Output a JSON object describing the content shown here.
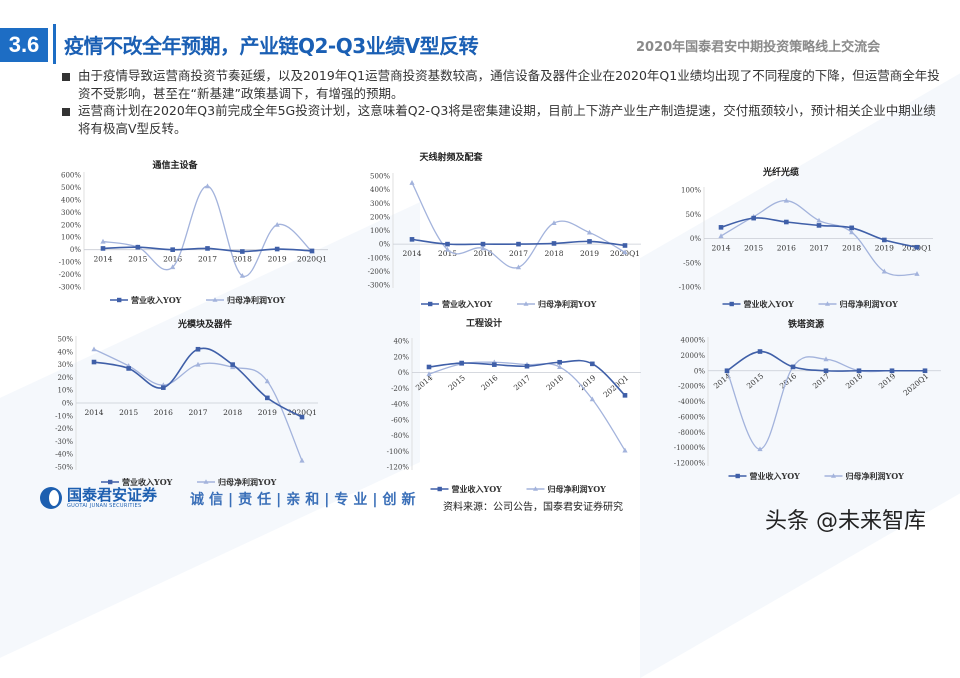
{
  "header": {
    "section_number": "3.6",
    "title": "疫情不改全年预期，产业链Q2-Q3业绩V型反转",
    "event": "2020年国泰君安中期投资策略线上交流会"
  },
  "bullets": [
    "由于疫情导致运营商投资节奏延缓，以及2019年Q1运营商投资基数较高，通信设备及器件企业在2020年Q1业绩均出现了不同程度的下降，但运营商全年投资不受影响，甚至在“新基建”政策基调下，有增强的预期。",
    "运营商计划在2020年Q3前完成全年5G投资计划，这意味着Q2-Q3将是密集建设期，目前上下游产业生产制造提速，交付瓶颈较小，预计相关企业中期业绩将有极高V型反转。"
  ],
  "colors": {
    "accent": "#1d6dc4",
    "revenue_series": "#3f5fa8",
    "profit_series": "#a3b3dc"
  },
  "chart_data": [
    {
      "type": "line",
      "title": "通信主设备",
      "categories": [
        "2014",
        "2015",
        "2016",
        "2017",
        "2018",
        "2019",
        "2020Q1"
      ],
      "series": [
        {
          "name": "营业收入YOY",
          "values": [
            10,
            20,
            0,
            10,
            -15,
            5,
            -10
          ]
        },
        {
          "name": "归母净利润YOY",
          "values": [
            65,
            20,
            -140,
            510,
            -210,
            200,
            -15
          ]
        }
      ],
      "ylim": [
        -300,
        600
      ],
      "ytick_step": 100,
      "yticks": [
        "600%",
        "500%",
        "400%",
        "300%",
        "200%",
        "100%",
        "0%",
        "-100%",
        "-200%",
        "-300%"
      ],
      "grid": false,
      "legend": "bottom"
    },
    {
      "type": "line",
      "title": "天线射频及配套",
      "categories": [
        "2014",
        "2015",
        "2016",
        "2017",
        "2018",
        "2019",
        "2020Q1"
      ],
      "series": [
        {
          "name": "营业收入YOY",
          "values": [
            35,
            0,
            0,
            0,
            5,
            20,
            -10
          ]
        },
        {
          "name": "归母净利润YOY",
          "values": [
            450,
            -40,
            -30,
            -170,
            155,
            85,
            -60
          ]
        }
      ],
      "ylim": [
        -300,
        500
      ],
      "ytick_step": 100,
      "yticks": [
        "500%",
        "400%",
        "300%",
        "200%",
        "100%",
        "0%",
        "-100%",
        "-200%",
        "-300%"
      ],
      "grid": false,
      "legend": "bottom"
    },
    {
      "type": "line",
      "title": "光纤光缆",
      "categories": [
        "2014",
        "2015",
        "2016",
        "2017",
        "2018",
        "2019",
        "2020Q1"
      ],
      "series": [
        {
          "name": "营业收入YOY",
          "values": [
            23,
            42,
            34,
            27,
            22,
            -3,
            -18
          ]
        },
        {
          "name": "归母净利润YOY",
          "values": [
            5,
            45,
            78,
            37,
            13,
            -68,
            -73
          ]
        }
      ],
      "ylim": [
        -100,
        100
      ],
      "ytick_step": 50,
      "yticks": [
        "100%",
        "50%",
        "0%",
        "-50%",
        "-100%"
      ],
      "grid": false,
      "legend": "bottom"
    },
    {
      "type": "line",
      "title": "光模块及器件",
      "categories": [
        "2014",
        "2015",
        "2016",
        "2017",
        "2018",
        "2019",
        "2020Q1"
      ],
      "series": [
        {
          "name": "营业收入YOY",
          "values": [
            32,
            27,
            12,
            42,
            30,
            4,
            -11
          ]
        },
        {
          "name": "归母净利润YOY",
          "values": [
            42,
            29,
            14,
            30,
            28,
            17,
            -45
          ]
        }
      ],
      "ylim": [
        -50,
        50
      ],
      "ytick_step": 10,
      "yticks": [
        "50%",
        "40%",
        "30%",
        "20%",
        "10%",
        "0%",
        "-10%",
        "-20%",
        "-30%",
        "-40%",
        "-50%"
      ],
      "grid": false,
      "legend": "bottom"
    },
    {
      "type": "line",
      "title": "工程设计",
      "categories": [
        "2014",
        "2015",
        "2016",
        "2017",
        "2018",
        "2019",
        "2020Q1"
      ],
      "series": [
        {
          "name": "营业收入YOY",
          "values": [
            7,
            12,
            10,
            8,
            13,
            11,
            -29
          ]
        },
        {
          "name": "归母净利润YOY",
          "values": [
            -2,
            11,
            13,
            10,
            7,
            -34,
            -99
          ]
        }
      ],
      "ylim": [
        -120,
        40
      ],
      "ytick_step": 20,
      "yticks": [
        "40%",
        "20%",
        "0%",
        "-20%",
        "-40%",
        "-60%",
        "-80%",
        "-100%",
        "-120%"
      ],
      "grid": false,
      "legend": "bottom"
    },
    {
      "type": "line",
      "title": "铁塔资源",
      "categories": [
        "2014",
        "2015",
        "2016",
        "2017",
        "2018",
        "2019",
        "2020Q1"
      ],
      "series": [
        {
          "name": "营业收入YOY",
          "values": [
            0,
            2500,
            500,
            0,
            0,
            0,
            0
          ]
        },
        {
          "name": "归母净利润YOY",
          "values": [
            0,
            -10200,
            500,
            1500,
            0,
            0,
            0
          ]
        }
      ],
      "ylim": [
        -12000,
        4000
      ],
      "ytick_step": 2000,
      "yticks": [
        "4000%",
        "2000%",
        "0%",
        "-2000%",
        "-4000%",
        "-6000%",
        "-8000%",
        "-10000%",
        "-12000%"
      ],
      "grid": false,
      "legend": "bottom"
    }
  ],
  "footer": {
    "logo_cn": "国泰君安证券",
    "logo_en": "GUOTAI JUNAN SECURITIES",
    "slogan": "诚信|责任|亲和|专业|创新",
    "source": "资料来源：公司公告，国泰君安证券研究",
    "watermark": "头条 @未来智库"
  }
}
